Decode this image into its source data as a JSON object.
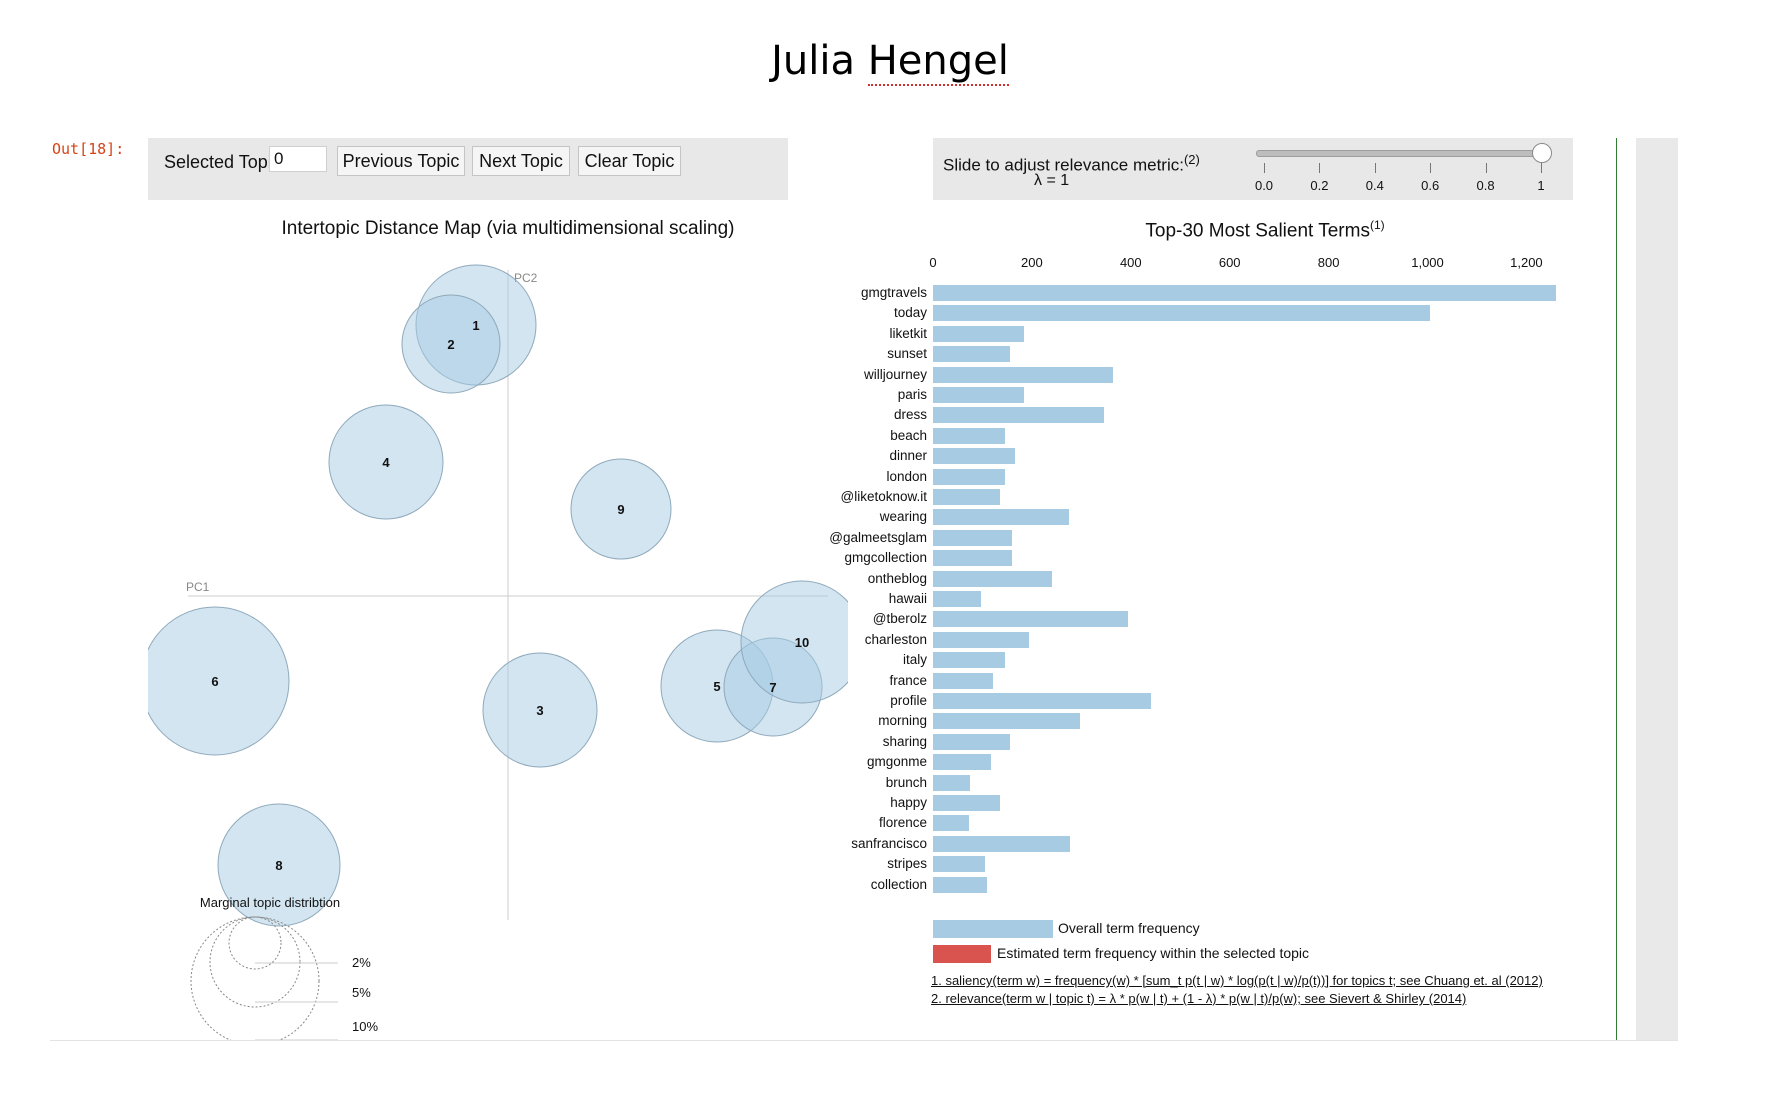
{
  "document_title": {
    "part1": "Julia ",
    "part2": "Hengel"
  },
  "output_prompt": "Out[18]:",
  "controls": {
    "selected_topic_label": "Selected Topic:",
    "selected_topic_value": "0",
    "previous_topic": "Previous Topic",
    "next_topic": "Next Topic",
    "clear_topic": "Clear Topic"
  },
  "slider": {
    "label": "Slide to adjust relevance metric:",
    "label_sup": "(2)",
    "lambda_text": "λ = 1",
    "value": 1,
    "ticks": [
      "0.0",
      "0.2",
      "0.4",
      "0.6",
      "0.8",
      "1"
    ]
  },
  "left_panel": {
    "title": "Intertopic Distance Map (via multidimensional scaling)",
    "pc1_label": "PC1",
    "pc2_label": "PC2",
    "marginal_title": "Marginal topic distribtion",
    "marginal_legend": [
      "2%",
      "5%",
      "10%"
    ],
    "topics": [
      {
        "label": "1"
      },
      {
        "label": "2"
      },
      {
        "label": "3"
      },
      {
        "label": "4"
      },
      {
        "label": "5"
      },
      {
        "label": "6"
      },
      {
        "label": "7"
      },
      {
        "label": "8"
      },
      {
        "label": "9"
      },
      {
        "label": "10"
      }
    ]
  },
  "right_panel": {
    "title": "Top-30 Most Salient Terms",
    "title_sup": "(1)",
    "legend": {
      "overall": "Overall term frequency",
      "estimated": "Estimated term frequency within the selected topic",
      "overall_color": "#a6cbe3",
      "estimated_color": "#d9534f"
    },
    "footnotes": [
      "1. saliency(term w) = frequency(w) * [sum_t p(t | w) * log(p(t | w)/p(t))] for topics t; see Chuang et. al (2012)",
      "2. relevance(term w | topic t) = λ * p(w | t) + (1 - λ) * p(w | t)/p(w); see Sievert & Shirley (2014)"
    ]
  },
  "chart_data": {
    "type": "bar",
    "orientation": "horizontal",
    "xlim": [
      0,
      1300
    ],
    "x_ticks": [
      "0",
      "200",
      "400",
      "600",
      "800",
      "1,000",
      "1,200"
    ],
    "categories": [
      "gmgtravels",
      "today",
      "liketkit",
      "sunset",
      "willjourney",
      "paris",
      "dress",
      "beach",
      "dinner",
      "london",
      "@liketoknow.it",
      "wearing",
      "@galmeetsglam",
      "gmgcollection",
      "ontheblog",
      "hawaii",
      "@tberolz",
      "charleston",
      "italy",
      "france",
      "profile",
      "morning",
      "sharing",
      "gmgonme",
      "brunch",
      "happy",
      "florence",
      "sanfrancisco",
      "stripes",
      "collection"
    ],
    "series": [
      {
        "name": "Overall term frequency",
        "values": [
          1260,
          1005,
          185,
          155,
          365,
          185,
          345,
          145,
          165,
          145,
          135,
          275,
          160,
          160,
          240,
          97,
          395,
          195,
          145,
          122,
          440,
          297,
          155,
          117,
          75,
          135,
          72,
          277,
          105,
          110
        ]
      }
    ]
  }
}
